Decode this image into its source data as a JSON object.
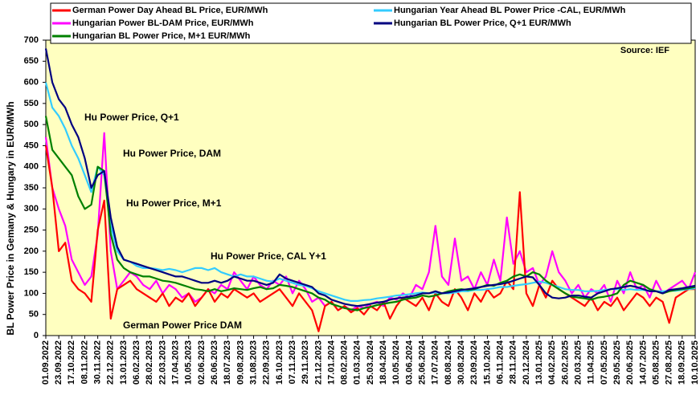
{
  "chart_data": {
    "type": "line",
    "y_label": "BL Power Price in Gemany & Hungary in EUR/MWh",
    "source": "Source: IEF",
    "legend": "top",
    "background": "#ffffc0",
    "categories": [
      "01.09.2022",
      null,
      "23.09.2022",
      null,
      "17.10.2022",
      null,
      "08.11.2022",
      null,
      "30.11.2022",
      null,
      "22.12.2022",
      null,
      "13.01.2023",
      null,
      "06.02.2023",
      null,
      "28.02.2023",
      null,
      "22.03.2023",
      null,
      "17.04.2023",
      null,
      "10.05.2023",
      null,
      "02.06.2023",
      null,
      "26.06.2023",
      null,
      "18.07.2023",
      null,
      "09.08.2023",
      null,
      "31.08.2023",
      null,
      "22.09.2023",
      null,
      "16.10.2023",
      null,
      "07.11.2023",
      null,
      "29.11.2023",
      null,
      "21.12.2023",
      null,
      "17.01.2024",
      null,
      "08.02.2024",
      null,
      "01.03.2024",
      null,
      "25.03.2024",
      null,
      "18.04.2024",
      null,
      "10.05.2024",
      null,
      "03.06.2024",
      null,
      "25.06.2024",
      null,
      "17.07.2024",
      null,
      "08.08.2024",
      null,
      "30.08.2024",
      null,
      "23.09.2024",
      null,
      "15.10.2024",
      null,
      "06.11.2024",
      null,
      "28.11.2024",
      null,
      "20.12.2024",
      null,
      "13.01.2025",
      null,
      "04.02.2025",
      null,
      "26.02.2025",
      null,
      "20.03.2025",
      null,
      "11.04.2025",
      null,
      "07.05.2025",
      null,
      "29.05.2025",
      null,
      "20.06.2025",
      null,
      "14.07.2025",
      null,
      "05.08.2025",
      null,
      "27.08.2025",
      null,
      "18.09.2025",
      null,
      "10.10.2025"
    ],
    "series": [
      {
        "name": "German Power Day Ahead BL Price, EUR/MWh",
        "color": "#ff0000",
        "values": [
          450,
          350,
          200,
          220,
          130,
          110,
          100,
          80,
          250,
          320,
          40,
          110,
          120,
          130,
          110,
          100,
          90,
          80,
          100,
          70,
          90,
          80,
          100,
          70,
          90,
          110,
          80,
          100,
          90,
          110,
          100,
          90,
          100,
          80,
          90,
          100,
          110,
          90,
          70,
          100,
          80,
          60,
          10,
          70,
          80,
          60,
          70,
          55,
          65,
          50,
          70,
          60,
          80,
          40,
          70,
          90,
          80,
          70,
          90,
          60,
          100,
          80,
          70,
          110,
          90,
          60,
          100,
          80,
          110,
          90,
          100,
          130,
          110,
          340,
          100,
          70,
          120,
          90,
          130,
          110,
          100,
          90,
          80,
          70,
          90,
          60,
          80,
          70,
          90,
          60,
          80,
          100,
          90,
          70,
          90,
          80,
          30,
          90,
          100,
          110,
          110
        ]
      },
      {
        "name": "Hungarian Year Ahead BL Power Price -CAL, EUR/MWh",
        "color": "#33ccff",
        "values": [
          600,
          540,
          520,
          490,
          450,
          420,
          380,
          340,
          400,
          380,
          260,
          200,
          180,
          175,
          165,
          160,
          160,
          158,
          155,
          158,
          155,
          150,
          155,
          160,
          160,
          155,
          160,
          150,
          145,
          140,
          145,
          140,
          140,
          135,
          130,
          128,
          135,
          130,
          125,
          120,
          118,
          112,
          105,
          100,
          95,
          90,
          85,
          82,
          82,
          84,
          85,
          88,
          90,
          92,
          95,
          96,
          98,
          100,
          102,
          100,
          102,
          100,
          100,
          102,
          105,
          105,
          108,
          108,
          110,
          112,
          115,
          115,
          118,
          120,
          122,
          125,
          128,
          125,
          120,
          115,
          110,
          108,
          108,
          105,
          105,
          106,
          108,
          110,
          110,
          108,
          110,
          108,
          108,
          106,
          105,
          105,
          106,
          106,
          108,
          110,
          112
        ]
      },
      {
        "name": "Hungarian Power BL-DAM Price, EUR/MWh",
        "color": "#ff00ff",
        "values": [
          470,
          350,
          300,
          260,
          180,
          150,
          120,
          140,
          240,
          480,
          200,
          110,
          130,
          150,
          140,
          120,
          110,
          130,
          100,
          120,
          110,
          90,
          100,
          80,
          90,
          110,
          100,
          120,
          110,
          150,
          130,
          110,
          140,
          120,
          110,
          130,
          120,
          140,
          100,
          130,
          110,
          80,
          90,
          70,
          80,
          60,
          70,
          60,
          70,
          65,
          75,
          80,
          70,
          90,
          85,
          100,
          90,
          120,
          110,
          150,
          260,
          140,
          120,
          230,
          130,
          140,
          110,
          150,
          120,
          180,
          130,
          280,
          170,
          200,
          150,
          160,
          120,
          140,
          200,
          150,
          130,
          100,
          120,
          90,
          110,
          100,
          120,
          80,
          130,
          100,
          150,
          110,
          120,
          90,
          130,
          100,
          110,
          120,
          130,
          110,
          150
        ]
      },
      {
        "name": "Hungarian BL Power Price, Q+1 EUR/MWh",
        "color": "#000080",
        "values": [
          680,
          600,
          560,
          540,
          500,
          470,
          420,
          350,
          380,
          390,
          280,
          210,
          180,
          175,
          170,
          165,
          160,
          155,
          150,
          145,
          140,
          140,
          135,
          130,
          125,
          125,
          130,
          125,
          130,
          140,
          135,
          130,
          130,
          125,
          120,
          125,
          145,
          135,
          130,
          125,
          120,
          115,
          100,
          95,
          85,
          80,
          75,
          72,
          70,
          72,
          75,
          78,
          80,
          85,
          88,
          90,
          92,
          95,
          100,
          100,
          105,
          100,
          102,
          105,
          108,
          110,
          112,
          115,
          118,
          120,
          122,
          125,
          130,
          135,
          140,
          138,
          120,
          100,
          90,
          88,
          90,
          95,
          95,
          92,
          90,
          100,
          105,
          110,
          112,
          115,
          118,
          115,
          110,
          105,
          105,
          100,
          108,
          110,
          112,
          115,
          118
        ]
      },
      {
        "name": "Hungarian BL Power Price, M+1 EUR/MWh",
        "color": "#008000",
        "values": [
          520,
          440,
          420,
          400,
          380,
          330,
          300,
          310,
          400,
          390,
          240,
          180,
          160,
          150,
          145,
          140,
          140,
          135,
          130,
          128,
          125,
          120,
          115,
          110,
          108,
          105,
          110,
          105,
          108,
          112,
          110,
          108,
          112,
          115,
          110,
          112,
          120,
          118,
          115,
          110,
          105,
          100,
          90,
          85,
          75,
          70,
          65,
          62,
          60,
          65,
          68,
          72,
          75,
          78,
          80,
          85,
          88,
          90,
          95,
          92,
          95,
          100,
          105,
          108,
          110,
          108,
          110,
          115,
          120,
          118,
          125,
          130,
          140,
          145,
          140,
          150,
          145,
          130,
          120,
          110,
          100,
          92,
          90,
          88,
          85,
          90,
          92,
          95,
          100,
          120,
          130,
          125,
          120,
          110,
          105,
          100,
          105,
          108,
          110,
          112,
          115
        ]
      }
    ],
    "annotations": [
      {
        "text": "Hu Power Price, Q+1",
        "color": "#000080"
      },
      {
        "text": "Hu Power Price, DAM",
        "color": "#ff00ff"
      },
      {
        "text": "Hu Power Price, M+1",
        "color": "#008000"
      },
      {
        "text": "Hu Power Price, CAL Y+1",
        "color": "#33ccff"
      },
      {
        "text": "German Power Price DAM",
        "color": "#ff0000"
      }
    ],
    "ylim": [
      0,
      700
    ],
    "yticks": [
      0,
      50,
      100,
      150,
      200,
      250,
      300,
      350,
      400,
      450,
      500,
      550,
      600,
      650,
      700
    ],
    "grid": false
  }
}
